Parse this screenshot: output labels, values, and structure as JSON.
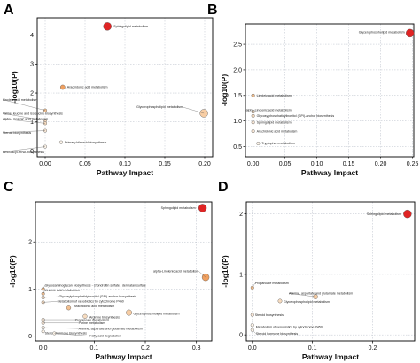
{
  "chart_data": [
    {
      "type": "scatter",
      "panel": "A",
      "xlabel": "Pathway Impact",
      "ylabel": "-log10(P)",
      "xlim": [
        -0.01,
        0.21
      ],
      "ylim": [
        -0.2,
        4.6
      ],
      "xticks": [
        "0.00",
        "0.05",
        "0.10",
        "0.15",
        "0.20"
      ],
      "xtick_values": [
        0,
        0.05,
        0.1,
        0.15,
        0.2
      ],
      "yticks": [
        "0",
        "1",
        "2",
        "3",
        "4"
      ],
      "ytick_values": [
        0,
        1,
        2,
        3,
        4
      ],
      "grid": "dashed",
      "points": [
        {
          "x": 0.078,
          "y": 4.3,
          "size": 4.5,
          "color": "#e02424",
          "label": "Sphingolipid metabolism"
        },
        {
          "x": 0.022,
          "y": 2.2,
          "size": 2.6,
          "color": "#f0a060",
          "label": "Arachidonic acid metabolism"
        },
        {
          "x": 0.199,
          "y": 1.3,
          "size": 4.5,
          "color": "#f7cda4",
          "label": "Glycerophospholipid metabolism"
        },
        {
          "x": 0.0,
          "y": 1.4,
          "size": 1.8,
          "color": "#f3c090",
          "label": "Linoleic acid metabolism"
        },
        {
          "x": 0.0,
          "y": 1.05,
          "size": 1.8,
          "color": "#f7dcc0",
          "label": "Valine, leucine and isoleucine biosynthesis"
        },
        {
          "x": 0.0,
          "y": 0.95,
          "size": 1.8,
          "color": "#f7dcc0",
          "label": "alpha-Linolenic acid metabolism"
        },
        {
          "x": 0.0,
          "y": 0.7,
          "size": 1.8,
          "color": "#fae8d6",
          "label": "Steroid biosynthesis"
        },
        {
          "x": 0.02,
          "y": 0.3,
          "size": 1.8,
          "color": "#fff6ea",
          "label": "Primary bile acid biosynthesis"
        },
        {
          "x": 0.0,
          "y": 0.15,
          "size": 1.8,
          "color": "#fff6ea",
          "label": "Aminoacyl-tRNA biosynthesis"
        }
      ]
    },
    {
      "type": "scatter",
      "panel": "B",
      "xlabel": "Pathway Impact",
      "ylabel": "-log10(P)",
      "xlim": [
        -0.012,
        0.252
      ],
      "ylim": [
        0.3,
        2.9
      ],
      "xticks": [
        "0.00",
        "0.05",
        "0.10",
        "0.15",
        "0.20",
        "0.25"
      ],
      "xtick_values": [
        0,
        0.05,
        0.1,
        0.15,
        0.2,
        0.25
      ],
      "yticks": [
        "0.5",
        "1.0",
        "1.5",
        "2.0",
        "2.5"
      ],
      "ytick_values": [
        0.5,
        1.0,
        1.5,
        2.0,
        2.5
      ],
      "grid": "dashed",
      "points": [
        {
          "x": 0.246,
          "y": 2.72,
          "size": 4.5,
          "color": "#e02424",
          "label": "Glycerophospholipid metabolism"
        },
        {
          "x": 0.0,
          "y": 1.5,
          "size": 1.8,
          "color": "#f3c090",
          "label": "Linoleic acid metabolism"
        },
        {
          "x": 0.0,
          "y": 1.18,
          "size": 1.8,
          "color": "#f7dcc0",
          "label": "alpha-Linolenic acid metabolism"
        },
        {
          "x": 0.0,
          "y": 1.1,
          "size": 1.8,
          "color": "#f7dcc0",
          "label": "Glycosylphosphatidylinositol (GPI)-anchor biosynthesis"
        },
        {
          "x": 0.0,
          "y": 0.97,
          "size": 1.8,
          "color": "#fae8d6",
          "label": "Sphingolipid metabolism"
        },
        {
          "x": 0.0,
          "y": 0.8,
          "size": 1.8,
          "color": "#fae8d6",
          "label": "Arachidonic acid metabolism"
        },
        {
          "x": 0.008,
          "y": 0.56,
          "size": 1.8,
          "color": "#fff6ea",
          "label": "Tryptophan metabolism"
        }
      ]
    },
    {
      "type": "scatter",
      "panel": "C",
      "xlabel": "Pathway Impact",
      "ylabel": "-log10(P)",
      "xlim": [
        -0.015,
        0.33
      ],
      "ylim": [
        -0.1,
        2.85
      ],
      "xticks": [
        "0.0",
        "0.1",
        "0.2",
        "0.3"
      ],
      "xtick_values": [
        0,
        0.1,
        0.2,
        0.3
      ],
      "yticks": [
        "0",
        "1",
        "2"
      ],
      "ytick_values": [
        0,
        1,
        2
      ],
      "grid": "dashed",
      "points": [
        {
          "x": 0.312,
          "y": 2.72,
          "size": 4.5,
          "color": "#e02424",
          "label": "Sphingolipid metabolism"
        },
        {
          "x": 0.318,
          "y": 1.25,
          "size": 4.0,
          "color": "#f0a060",
          "label": "alpha-Linolenic acid metabolism"
        },
        {
          "x": 0.0,
          "y": 1.0,
          "size": 1.8,
          "color": "#f3c090",
          "label": "Glycosaminoglycan biosynthesis - chondroitin sulfate / dermatan sulfate"
        },
        {
          "x": 0.0,
          "y": 0.9,
          "size": 1.8,
          "color": "#f3c090",
          "label": "Linoleic acid metabolism"
        },
        {
          "x": 0.0,
          "y": 0.82,
          "size": 1.8,
          "color": "#f7dcc0",
          "label": "Glycosylphosphatidylinositol (GPI)-anchor biosynthesis"
        },
        {
          "x": 0.0,
          "y": 0.72,
          "size": 1.8,
          "color": "#f7dcc0",
          "label": "Metabolism of xenobiotics by cytochrome P450"
        },
        {
          "x": 0.05,
          "y": 0.6,
          "size": 2.4,
          "color": "#f3c090",
          "label": "Arachidonic acid metabolism"
        },
        {
          "x": 0.168,
          "y": 0.5,
          "size": 3.2,
          "color": "#f7cda4",
          "label": "Glycerophospholipid metabolism"
        },
        {
          "x": 0.082,
          "y": 0.42,
          "size": 2.4,
          "color": "#f7dcc0",
          "label": "Arginine biosynthesis"
        },
        {
          "x": 0.0,
          "y": 0.35,
          "size": 1.8,
          "color": "#fae8d6",
          "label": "Propanoate metabolism"
        },
        {
          "x": 0.0,
          "y": 0.28,
          "size": 1.8,
          "color": "#fae8d6",
          "label": "Purine metabolism"
        },
        {
          "x": 0.0,
          "y": 0.18,
          "size": 1.8,
          "color": "#fff6ea",
          "label": "Alanine, aspartate and glutamate metabolism"
        },
        {
          "x": 0.0,
          "y": 0.1,
          "size": 1.8,
          "color": "#fff6ea",
          "label": "Steroid hormone biosynthesis"
        },
        {
          "x": 0.022,
          "y": 0.06,
          "size": 1.8,
          "color": "#fff6ea",
          "label": "Fatty acid degradation"
        }
      ]
    },
    {
      "type": "scatter",
      "panel": "D",
      "xlabel": "Pathway Impact",
      "ylabel": "-log10(P)",
      "xlim": [
        -0.01,
        0.27
      ],
      "ylim": [
        -0.1,
        2.2
      ],
      "xticks": [
        "0.0",
        "0.1",
        "0.2"
      ],
      "xtick_values": [
        0,
        0.1,
        0.2
      ],
      "yticks": [
        "0",
        "1",
        "2"
      ],
      "ytick_values": [
        0,
        1,
        2
      ],
      "grid": "dashed",
      "points": [
        {
          "x": 0.258,
          "y": 2.0,
          "size": 4.5,
          "color": "#e02424",
          "label": "Sphingolipid metabolism"
        },
        {
          "x": 0.0,
          "y": 0.78,
          "size": 1.8,
          "color": "#f3c090",
          "label": "Propanoate metabolism"
        },
        {
          "x": 0.105,
          "y": 0.63,
          "size": 2.6,
          "color": "#f7cda4",
          "label": "Alanine, aspartate and glutamate metabolism"
        },
        {
          "x": 0.046,
          "y": 0.56,
          "size": 2.2,
          "color": "#f7dcc0",
          "label": "Glycerophospholipid metabolism"
        },
        {
          "x": 0.0,
          "y": 0.33,
          "size": 1.8,
          "color": "#fae8d6",
          "label": "Steroid biosynthesis"
        },
        {
          "x": 0.0,
          "y": 0.16,
          "size": 1.8,
          "color": "#fff6ea",
          "label": "Metabolism of xenobiotics by cytochrome P450"
        },
        {
          "x": 0.0,
          "y": 0.08,
          "size": 1.8,
          "color": "#fff6ea",
          "label": "Steroid hormone biosynthesis"
        }
      ]
    }
  ]
}
